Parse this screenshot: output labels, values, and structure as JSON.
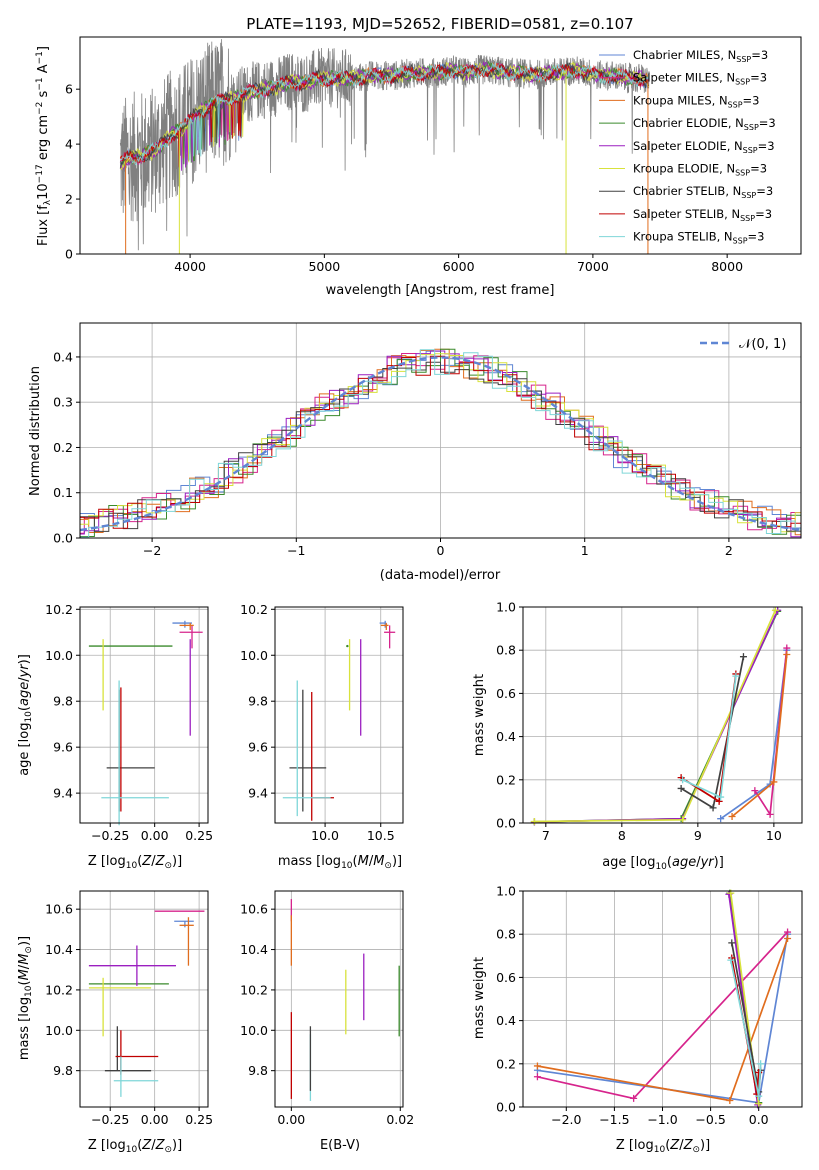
{
  "chart_data": [
    {
      "id": "spectrum",
      "type": "line",
      "title": "PLATE=1193, MJD=52652, FIBERID=0581, z=0.107",
      "xlabel": "wavelength [Angstrom, rest frame]",
      "ylabel": "Flux [f_λ 10^-17 erg cm^-2 s^-1 A^-1]",
      "xlim": [
        3180,
        8550
      ],
      "ylim": [
        0,
        7.9
      ],
      "xticks": [
        4000,
        5000,
        6000,
        7000,
        8000
      ],
      "yticks": [
        0,
        2,
        4,
        6
      ],
      "legend_position": "top-right",
      "continuum_x": [
        3480,
        3550,
        3650,
        3750,
        3850,
        3950,
        4050,
        4150,
        4250,
        4350,
        4450,
        4550,
        4650,
        4750,
        4850,
        4950,
        5050,
        5150,
        5250,
        5350,
        5450,
        5550,
        5650,
        5750,
        5850,
        5950,
        6050,
        6150,
        6250,
        6350,
        6450,
        6550,
        6650,
        6750,
        6850,
        6950,
        7050,
        7150,
        7250,
        7350,
        7420
      ],
      "continuum_y": [
        3.3,
        3.5,
        3.6,
        3.8,
        4.3,
        4.6,
        5.1,
        5.4,
        5.6,
        5.7,
        5.9,
        6.0,
        6.1,
        6.3,
        6.2,
        6.4,
        6.4,
        6.4,
        6.4,
        6.5,
        6.5,
        6.5,
        6.6,
        6.6,
        6.6,
        6.7,
        6.6,
        6.7,
        6.7,
        6.6,
        6.6,
        6.5,
        6.6,
        6.6,
        6.7,
        6.6,
        6.5,
        6.5,
        6.4,
        6.4,
        6.3
      ],
      "observed_wavelength_range": [
        3480,
        7420
      ],
      "series": [
        {
          "name": "Chabrier MILES, N_SSP=3",
          "color": "#5f86d4"
        },
        {
          "name": "Salpeter MILES, N_SSP=3",
          "color": "#d6248c"
        },
        {
          "name": "Kroupa MILES, N_SSP=3",
          "color": "#e06d1e"
        },
        {
          "name": "Chabrier ELODIE, N_SSP=3",
          "color": "#3a8a2c"
        },
        {
          "name": "Salpeter ELODIE, N_SSP=3",
          "color": "#9b1fc0"
        },
        {
          "name": "Kroupa ELODIE, N_SSP=3",
          "color": "#d8e23c"
        },
        {
          "name": "Chabrier STELIB, N_SSP=3",
          "color": "#404040"
        },
        {
          "name": "Salpeter STELIB, N_SSP=3",
          "color": "#c00000"
        },
        {
          "name": "Kroupa STELIB, N_SSP=3",
          "color": "#7fd6d8"
        }
      ],
      "data_color": "#808080"
    },
    {
      "id": "residuals",
      "type": "histogram",
      "xlabel": "(data-model)/error",
      "ylabel": "Normed distribution",
      "xlim": [
        -2.5,
        2.5
      ],
      "ylim": [
        0,
        0.475
      ],
      "xticks": [
        -2,
        -1,
        0,
        1,
        2
      ],
      "xtick_labels": [
        "−2",
        "−1",
        "0",
        "1",
        "2"
      ],
      "yticks": [
        0,
        0.1,
        0.2,
        0.3,
        0.4
      ],
      "ytick_labels": [
        "0.0",
        "0.1",
        "0.2",
        "0.3",
        "0.4"
      ],
      "bin_width": 0.1,
      "legend": "𝒩(0, 1)",
      "legend_position": "top-right",
      "normal_curve_color": "#5f86d4"
    },
    {
      "id": "age_vs_z",
      "type": "errorbar",
      "xlabel": "Z [log10(Z/Z⊙)]",
      "ylabel": "age [log10(age/yr)]",
      "xlim": [
        -0.42,
        0.3
      ],
      "ylim": [
        9.27,
        10.21
      ],
      "xticks": [
        -0.25,
        0.0,
        0.25
      ],
      "xtick_labels": [
        "−0.25",
        "0.00",
        "0.25"
      ],
      "yticks": [
        9.4,
        9.6,
        9.8,
        10.0,
        10.2
      ],
      "ytick_labels": [
        "9.4",
        "9.6",
        "9.8",
        "10.0",
        "10.2"
      ],
      "points": [
        {
          "series": "Chabrier MILES",
          "x": 0.17,
          "xerr": [
            0.07,
            0.04
          ],
          "y": 10.14,
          "yerr": [
            0.02,
            0.01
          ]
        },
        {
          "series": "Salpeter MILES",
          "x": 0.21,
          "xerr": [
            0.07,
            0.06
          ],
          "y": 10.1,
          "yerr": [
            0.07,
            0.03
          ]
        },
        {
          "series": "Kroupa MILES",
          "x": 0.2,
          "xerr": [
            0.06,
            0.02
          ],
          "y": 10.13,
          "yerr": [
            0.02,
            0.01
          ]
        },
        {
          "series": "Chabrier ELODIE",
          "x": -0.12,
          "xerr": [
            0.25,
            0.22
          ],
          "y": 10.04,
          "yerr": [
            0.0,
            0.0
          ]
        },
        {
          "series": "Salpeter ELODIE",
          "x": 0.2,
          "xerr": [
            0.0,
            0.0
          ],
          "y": 10.0,
          "yerr": [
            0.35,
            0.07
          ]
        },
        {
          "series": "Kroupa ELODIE",
          "x": -0.29,
          "xerr": [
            0.0,
            0.0
          ],
          "y": 10.0,
          "yerr": [
            0.24,
            0.07
          ]
        },
        {
          "series": "Chabrier STELIB",
          "x": -0.2,
          "xerr": [
            0.07,
            0.2
          ],
          "y": 9.51,
          "yerr": [
            0.19,
            0.34
          ]
        },
        {
          "series": "Salpeter STELIB",
          "x": -0.19,
          "xerr": [
            0.0,
            0.0
          ],
          "y": 9.6,
          "yerr": [
            0.28,
            0.26
          ]
        },
        {
          "series": "Kroupa STELIB",
          "x": -0.2,
          "xerr": [
            0.1,
            0.28
          ],
          "y": 9.38,
          "yerr": [
            0.12,
            0.51
          ]
        }
      ]
    },
    {
      "id": "age_vs_mass",
      "type": "errorbar",
      "xlabel": "mass [log10(M/M⊙)]",
      "ylabel": "",
      "xlim": [
        9.55,
        10.7
      ],
      "ylim": [
        9.27,
        10.21
      ],
      "xticks": [
        10.0,
        10.5
      ],
      "xtick_labels": [
        "10.0",
        "10.5"
      ],
      "yticks": [
        9.4,
        9.6,
        9.8,
        10.0,
        10.2
      ],
      "ytick_labels": [
        "9.4",
        "9.6",
        "9.8",
        "10.0",
        "10.2"
      ],
      "points": [
        {
          "series": "Chabrier MILES",
          "x": 10.54,
          "xerr": [
            0.05,
            0.01
          ],
          "y": 10.14,
          "yerr": [
            0.02,
            0.01
          ]
        },
        {
          "series": "Salpeter MILES",
          "x": 10.58,
          "xerr": [
            0.05,
            0.05
          ],
          "y": 10.1,
          "yerr": [
            0.07,
            0.03
          ]
        },
        {
          "series": "Kroupa MILES",
          "x": 10.55,
          "xerr": [
            0.05,
            0.02
          ],
          "y": 10.13,
          "yerr": [
            0.02,
            0.01
          ]
        },
        {
          "series": "Chabrier ELODIE",
          "x": 10.2,
          "xerr": [
            0.0,
            0.0
          ],
          "y": 10.04,
          "yerr": [
            0.0,
            0.0
          ]
        },
        {
          "series": "Salpeter ELODIE",
          "x": 10.32,
          "xerr": [
            0.0,
            0.0
          ],
          "y": 10.0,
          "yerr": [
            0.35,
            0.07
          ]
        },
        {
          "series": "Kroupa ELODIE",
          "x": 10.22,
          "xerr": [
            0.0,
            0.0
          ],
          "y": 10.0,
          "yerr": [
            0.24,
            0.07
          ]
        },
        {
          "series": "Chabrier STELIB",
          "x": 9.8,
          "xerr": [
            0.12,
            0.21
          ],
          "y": 9.51,
          "yerr": [
            0.19,
            0.34
          ]
        },
        {
          "series": "Salpeter STELIB",
          "x": 9.88,
          "xerr": [
            0.0,
            0.2
          ],
          "y": 9.38,
          "yerr": [
            0.1,
            0.46
          ]
        },
        {
          "series": "Kroupa STELIB",
          "x": 9.75,
          "xerr": [
            0.13,
            0.3
          ],
          "y": 9.38,
          "yerr": [
            0.08,
            0.51
          ]
        }
      ]
    },
    {
      "id": "weight_vs_age",
      "type": "line",
      "xlabel": "age [log10(age/yr)]",
      "ylabel": "mass weight",
      "xlim": [
        6.7,
        10.37
      ],
      "ylim": [
        0,
        1.0
      ],
      "xticks": [
        7,
        8,
        9,
        10
      ],
      "yticks": [
        0,
        0.2,
        0.4,
        0.6,
        0.8,
        1.0
      ],
      "ytick_labels": [
        "0.0",
        "0.2",
        "0.4",
        "0.6",
        "0.8",
        "1.0"
      ],
      "series": [
        {
          "name": "Chabrier MILES",
          "x": [
            9.3,
            9.95,
            10.17
          ],
          "y": [
            0.02,
            0.18,
            0.8
          ]
        },
        {
          "name": "Salpeter MILES",
          "x": [
            9.75,
            9.95,
            10.17
          ],
          "y": [
            0.15,
            0.04,
            0.81
          ]
        },
        {
          "name": "Kroupa MILES",
          "x": [
            9.45,
            10.0,
            10.17
          ],
          "y": [
            0.03,
            0.19,
            0.78
          ]
        },
        {
          "name": "Chabrier ELODIE",
          "x": [
            6.85,
            8.78,
            10.05
          ],
          "y": [
            0.005,
            0.02,
            0.98
          ]
        },
        {
          "name": "Salpeter ELODIE",
          "x": [
            6.85,
            8.8,
            10.05
          ],
          "y": [
            0.005,
            0.02,
            0.985
          ]
        },
        {
          "name": "Kroupa ELODIE",
          "x": [
            6.85,
            8.8,
            10.02
          ],
          "y": [
            0.007,
            0.015,
            0.985
          ]
        },
        {
          "name": "Chabrier STELIB",
          "x": [
            8.78,
            9.2,
            9.6
          ],
          "y": [
            0.16,
            0.07,
            0.77
          ]
        },
        {
          "name": "Salpeter STELIB",
          "x": [
            8.78,
            9.28,
            9.5
          ],
          "y": [
            0.21,
            0.1,
            0.69
          ]
        },
        {
          "name": "Kroupa STELIB",
          "x": [
            8.8,
            9.3,
            9.5
          ],
          "y": [
            0.2,
            0.12,
            0.68
          ]
        }
      ]
    },
    {
      "id": "mass_vs_z",
      "type": "errorbar",
      "xlabel": "Z [log10(Z/Z⊙)]",
      "ylabel": "mass [log10(M/M⊙)]",
      "xlim": [
        -0.42,
        0.3
      ],
      "ylim": [
        9.62,
        10.69
      ],
      "xticks": [
        -0.25,
        0.0,
        0.25
      ],
      "xtick_labels": [
        "−0.25",
        "0.00",
        "0.25"
      ],
      "yticks": [
        9.8,
        10.0,
        10.2,
        10.4,
        10.6
      ],
      "ytick_labels": [
        "9.8",
        "10.0",
        "10.2",
        "10.4",
        "10.6"
      ],
      "points": [
        {
          "series": "Chabrier MILES",
          "x": 0.17,
          "xerr": [
            0.06,
            0.05
          ],
          "y": 10.54,
          "yerr": [
            0.03,
            0.0
          ]
        },
        {
          "series": "Salpeter MILES",
          "x": 0.22,
          "xerr": [
            0.22,
            0.06
          ],
          "y": 10.59,
          "yerr": [
            0.0,
            0.0
          ]
        },
        {
          "series": "Kroupa MILES",
          "x": 0.19,
          "xerr": [
            0.05,
            0.03
          ],
          "y": 10.52,
          "yerr": [
            0.2,
            0.04
          ]
        },
        {
          "series": "Chabrier ELODIE",
          "x": -0.12,
          "xerr": [
            0.25,
            0.2
          ],
          "y": 10.23,
          "yerr": [
            0.0,
            0.0
          ]
        },
        {
          "series": "Salpeter ELODIE",
          "x": -0.1,
          "xerr": [
            0.27,
            0.22
          ],
          "y": 10.32,
          "yerr": [
            0.1,
            0.1
          ]
        },
        {
          "series": "Kroupa ELODIE",
          "x": -0.29,
          "xerr": [
            0.08,
            0.27
          ],
          "y": 10.21,
          "yerr": [
            0.24,
            0.05
          ]
        },
        {
          "series": "Chabrier STELIB",
          "x": -0.21,
          "xerr": [
            0.07,
            0.19
          ],
          "y": 9.8,
          "yerr": [
            0.0,
            0.22
          ]
        },
        {
          "series": "Salpeter STELIB",
          "x": -0.19,
          "xerr": [
            0.03,
            0.21
          ],
          "y": 9.87,
          "yerr": [
            0.09,
            0.13
          ]
        },
        {
          "series": "Kroupa STELIB",
          "x": -0.19,
          "xerr": [
            0.04,
            0.21
          ],
          "y": 9.75,
          "yerr": [
            0.08,
            0.12
          ]
        }
      ]
    },
    {
      "id": "mass_vs_ebv",
      "type": "errorbar",
      "xlabel": "E(B-V)",
      "ylabel": "",
      "xlim": [
        -0.003,
        0.0205
      ],
      "ylim": [
        9.62,
        10.69
      ],
      "xticks": [
        0.0,
        0.02
      ],
      "xtick_labels": [
        "0.00",
        "0.02"
      ],
      "yticks": [
        9.8,
        10.0,
        10.2,
        10.4,
        10.6
      ],
      "ytick_labels": [
        "9.8",
        "10.0",
        "10.2",
        "10.4",
        "10.6"
      ],
      "points": [
        {
          "series": "Salpeter MILES",
          "x": 0.0,
          "xerr": [
            0,
            0
          ],
          "y": 10.59,
          "yerr": [
            0.05,
            0.06
          ]
        },
        {
          "series": "Kroupa MILES",
          "x": 0.0,
          "xerr": [
            0,
            0
          ],
          "y": 10.45,
          "yerr": [
            0.13,
            0.12
          ]
        },
        {
          "series": "Salpeter STELIB",
          "x": 0.0,
          "xerr": [
            0,
            0
          ],
          "y": 9.87,
          "yerr": [
            0.21,
            0.22
          ]
        },
        {
          "series": "Kroupa STELIB",
          "x": 0.0035,
          "xerr": [
            0,
            0
          ],
          "y": 9.75,
          "yerr": [
            0.1,
            0.23
          ]
        },
        {
          "series": "Chabrier STELIB",
          "x": 0.0035,
          "xerr": [
            0,
            0
          ],
          "y": 9.8,
          "yerr": [
            0.1,
            0.22
          ]
        },
        {
          "series": "Kroupa ELODIE",
          "x": 0.01,
          "xerr": [
            0,
            0
          ],
          "y": 10.14,
          "yerr": [
            0.16,
            0.16
          ]
        },
        {
          "series": "Salpeter ELODIE",
          "x": 0.0133,
          "xerr": [
            0,
            0
          ],
          "y": 10.22,
          "yerr": [
            0.17,
            0.16
          ]
        },
        {
          "series": "Chabrier ELODIE",
          "x": 0.0198,
          "xerr": [
            0,
            0
          ],
          "y": 10.15,
          "yerr": [
            0.18,
            0.17
          ]
        }
      ]
    },
    {
      "id": "weight_vs_z",
      "type": "line",
      "xlabel": "Z [log10(Z/Z⊙)]",
      "ylabel": "mass weight",
      "xlim": [
        -2.45,
        0.45
      ],
      "ylim": [
        0,
        1.0
      ],
      "xticks": [
        -2.0,
        -1.5,
        -1.0,
        -0.5,
        0.0
      ],
      "xtick_labels": [
        "−2.0",
        "−1.5",
        "−1.0",
        "−0.5",
        "0.0"
      ],
      "yticks": [
        0,
        0.2,
        0.4,
        0.6,
        0.8,
        1.0
      ],
      "ytick_labels": [
        "0.0",
        "0.2",
        "0.4",
        "0.6",
        "0.8",
        "1.0"
      ],
      "series": [
        {
          "name": "Chabrier MILES",
          "x": [
            -2.3,
            0.0,
            0.3
          ],
          "y": [
            0.17,
            0.02,
            0.8
          ]
        },
        {
          "name": "Salpeter MILES",
          "x": [
            -2.3,
            -1.3,
            0.3
          ],
          "y": [
            0.14,
            0.04,
            0.81
          ]
        },
        {
          "name": "Kroupa MILES",
          "x": [
            -2.3,
            -0.3,
            0.3
          ],
          "y": [
            0.19,
            0.03,
            0.78
          ]
        },
        {
          "name": "Chabrier ELODIE",
          "x": [
            -0.3,
            0.0
          ],
          "y": [
            0.99,
            0.02
          ]
        },
        {
          "name": "Salpeter ELODIE",
          "x": [
            -0.31,
            -0.01
          ],
          "y": [
            0.985,
            0.01
          ]
        },
        {
          "name": "Kroupa ELODIE",
          "x": [
            -0.29,
            0.0
          ],
          "y": [
            0.99,
            0.015
          ]
        },
        {
          "name": "Chabrier STELIB",
          "x": [
            -0.28,
            0.0,
            0.02
          ],
          "y": [
            0.76,
            0.07,
            0.17
          ]
        },
        {
          "name": "Salpeter STELIB",
          "x": [
            -0.28,
            -0.02,
            0.0
          ],
          "y": [
            0.69,
            0.06,
            0.16
          ]
        },
        {
          "name": "Kroupa STELIB",
          "x": [
            -0.29,
            0.0,
            0.02
          ],
          "y": [
            0.68,
            0.05,
            0.2
          ]
        }
      ]
    }
  ],
  "text": {
    "spectrum_ylabel_main": "Flux [f",
    "mass_weight": "mass weight"
  }
}
